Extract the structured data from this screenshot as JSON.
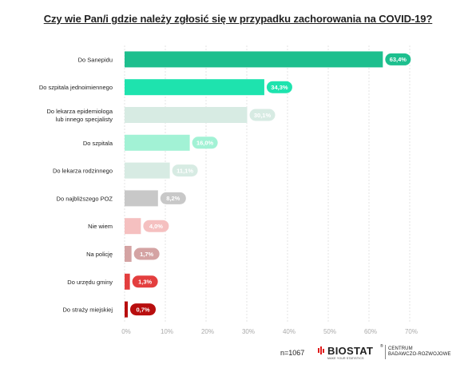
{
  "title": "Czy wie Pan/i gdzie należy zgłosić się w przypadku zachorowania na COVID-19?",
  "footer": {
    "sample": "n=1067",
    "logo_name": "BIOSTAT",
    "logo_reg": "®",
    "logo_tagline": "MAKE YOUR STATISTICS",
    "logo_sub_1": "CENTRUM",
    "logo_sub_2": "BADAWCZO-ROZWOJOWE"
  },
  "chart_data": {
    "type": "bar",
    "orientation": "horizontal",
    "title": "Czy wie Pan/i gdzie należy zgłosić się w przypadku zachorowania na COVID-19?",
    "categories": [
      [
        "Do Sanepidu"
      ],
      [
        "Do szpitala jednoimiennego"
      ],
      [
        "Do lekarza epidemiologa",
        "lub innego specjalisty"
      ],
      [
        "Do szpitala"
      ],
      [
        "Do lekarza rodzinnego"
      ],
      [
        "Do najbliższego POZ"
      ],
      [
        "Nie wiem"
      ],
      [
        "Na policję"
      ],
      [
        "Do urzędu gminy"
      ],
      [
        "Do straży miejskiej"
      ]
    ],
    "values": [
      63.4,
      34.3,
      30.1,
      16.0,
      11.1,
      8.2,
      4.0,
      1.7,
      1.3,
      0.7
    ],
    "value_labels": [
      "63,4%",
      "34,3%",
      "30,1%",
      "16,0%",
      "11,1%",
      "8,2%",
      "4,0%",
      "1,7%",
      "1,3%",
      "0,7%"
    ],
    "colors": [
      "#1dbf8e",
      "#1ee3ae",
      "#d7ebe3",
      "#a2f2d5",
      "#d7ebe3",
      "#c8c8c8",
      "#f5c0c0",
      "#d4a3a3",
      "#e33e3e",
      "#b80e0e"
    ],
    "xlim": [
      0,
      70
    ],
    "xticks": [
      0,
      10,
      20,
      30,
      40,
      50,
      60,
      70
    ],
    "xtick_labels": [
      "0%",
      "10%",
      "20%",
      "30%",
      "40%",
      "50%",
      "60%",
      "70%"
    ],
    "grid": true,
    "legend": "none"
  }
}
